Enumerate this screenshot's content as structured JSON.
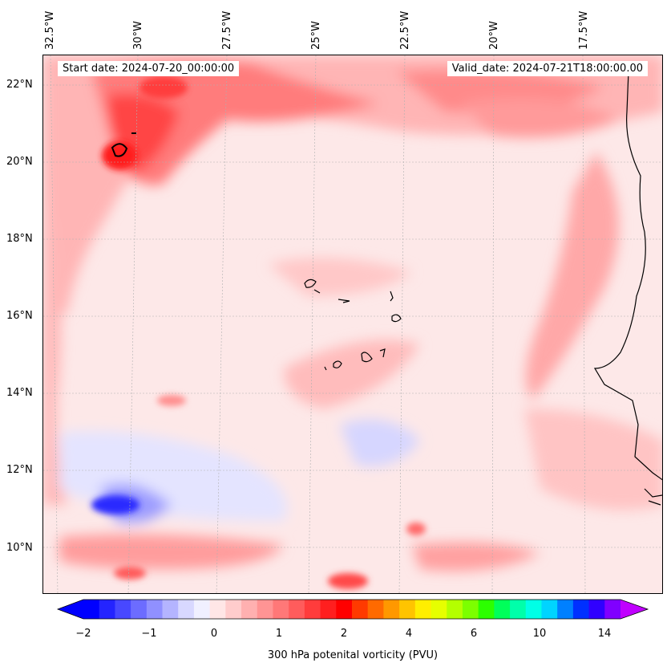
{
  "map": {
    "start_date": "Start date: 2024-07-20_00:00:00",
    "valid_date": "Valid_date: 2024-07-21T18:00:00.00",
    "longitude_labels": [
      "32.5°W",
      "30°W",
      "27.5°W",
      "25°W",
      "22.5°W",
      "20°W",
      "17.5°W"
    ],
    "latitude_labels": [
      "22°N",
      "20°N",
      "18°N",
      "16°N",
      "14°N",
      "12°N",
      "10°N"
    ],
    "land_line_color": "#000000",
    "grid_color": "#b0b0b0"
  },
  "colorbar": {
    "label": "300 hPa potenital vorticity (PVU)",
    "tick_labels": [
      "−2",
      "−1",
      "0",
      "1",
      "2",
      "4",
      "6",
      "10",
      "14"
    ],
    "levels": [
      -2,
      -1.75,
      -1.5,
      -1.25,
      -1,
      -0.75,
      -0.5,
      -0.25,
      0,
      0.25,
      0.5,
      0.75,
      1,
      1.25,
      1.5,
      1.75,
      2,
      2.5,
      3,
      3.5,
      4,
      4.5,
      5,
      5.5,
      6,
      7,
      8,
      9,
      10,
      11,
      12,
      13,
      14,
      15
    ],
    "colors": [
      "#0000ff",
      "#2424ff",
      "#4848ff",
      "#6c6cff",
      "#9090ff",
      "#b4b4ff",
      "#d8d8ff",
      "#f0f0ff",
      "#ffe6e6",
      "#ffcccc",
      "#ffb0b0",
      "#ff9494",
      "#ff7878",
      "#ff5c5c",
      "#ff3c3c",
      "#ff1f1f",
      "#ff0000",
      "#ff3a00",
      "#ff6a00",
      "#ff9800",
      "#ffc400",
      "#ffee00",
      "#e6ff00",
      "#b4ff00",
      "#7cff00",
      "#2cff00",
      "#00ff5a",
      "#00ffaa",
      "#00ffe6",
      "#00d4ff",
      "#0080ff",
      "#0030ff",
      "#3000ff",
      "#8000ff"
    ],
    "under_color": "#0000ff",
    "over_color": "#c000ff"
  }
}
